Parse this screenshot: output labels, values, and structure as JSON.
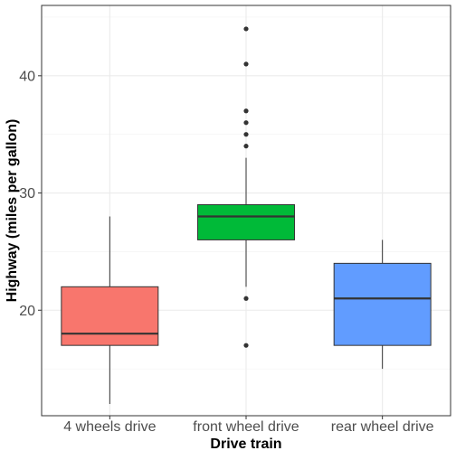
{
  "chart_data": {
    "type": "box",
    "title": "",
    "xlabel": "Drive train",
    "ylabel": "Highway (miles per gallon)",
    "ylim": [
      11,
      46
    ],
    "y_ticks": [
      20,
      30,
      40
    ],
    "y_tick_labels": [
      "20",
      "30",
      "40"
    ],
    "grid": true,
    "legend": "none",
    "categories": [
      "4 wheels drive",
      "front wheel drive",
      "rear wheel drive"
    ],
    "series": [
      {
        "category": "4 wheels drive",
        "color": "#f8766d",
        "whisker_low": 12,
        "q1": 17,
        "median": 18,
        "q3": 22,
        "whisker_high": 28,
        "outliers": []
      },
      {
        "category": "front wheel drive",
        "color": "#00ba38",
        "whisker_low": 22,
        "q1": 26,
        "median": 28,
        "q3": 29,
        "whisker_high": 33,
        "outliers": [
          17,
          21,
          34,
          35,
          36,
          37,
          41,
          44
        ]
      },
      {
        "category": "rear wheel drive",
        "color": "#619cff",
        "whisker_low": 15,
        "q1": 17,
        "median": 21,
        "q3": 24,
        "whisker_high": 26,
        "outliers": []
      }
    ]
  }
}
